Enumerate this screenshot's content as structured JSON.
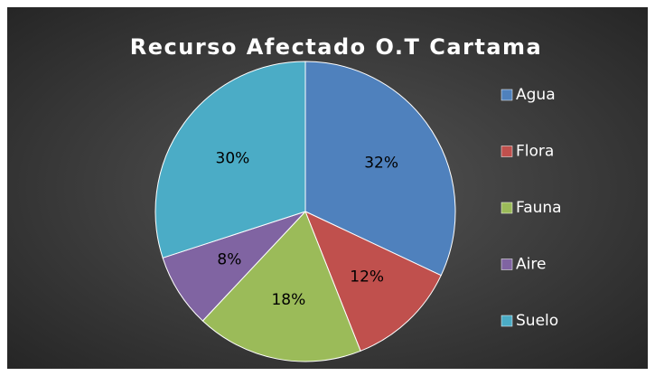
{
  "chart_data": {
    "type": "pie",
    "title": "Recurso Afectado O.T Cartama",
    "categories": [
      "Agua",
      "Flora",
      "Fauna",
      "Aire",
      "Suelo"
    ],
    "values": [
      32,
      12,
      18,
      8,
      30
    ],
    "value_labels": [
      "32%",
      "12%",
      "18%",
      "8%",
      "30%"
    ],
    "colors": [
      "#4f81bd",
      "#c0504d",
      "#9bbb59",
      "#8064a2",
      "#4bacc6"
    ],
    "legend": "right"
  }
}
